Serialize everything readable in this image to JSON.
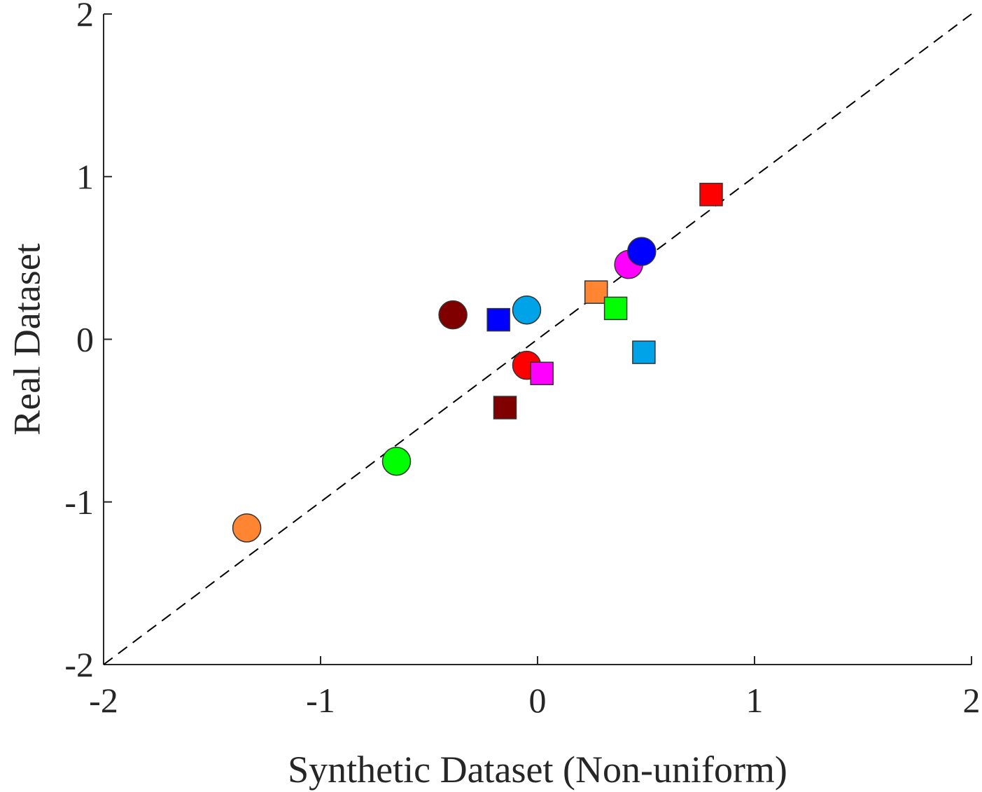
{
  "chart_data": {
    "type": "scatter",
    "xlabel": "Synthetic Dataset (Non-uniform)",
    "ylabel": "Real Dataset",
    "xlim": [
      -2,
      2
    ],
    "ylim": [
      -2,
      2
    ],
    "xticks": [
      -2,
      -1,
      0,
      1,
      2
    ],
    "yticks": [
      -2,
      -1,
      0,
      1,
      2
    ],
    "xtick_labels": [
      "-2",
      "-1",
      "0",
      "1",
      "2"
    ],
    "ytick_labels": [
      "-2",
      "-1",
      "0",
      "1",
      "2"
    ],
    "grid": false,
    "reference_line": {
      "style": "dashed",
      "color": "#000000",
      "from": [
        -2,
        -2
      ],
      "to": [
        2,
        2
      ]
    },
    "points": [
      {
        "x": -1.34,
        "y": -1.16,
        "marker": "circle",
        "color": "#ff8533"
      },
      {
        "x": -0.65,
        "y": -0.75,
        "marker": "circle",
        "color": "#00ff00"
      },
      {
        "x": -0.39,
        "y": 0.15,
        "marker": "circle",
        "color": "#800000"
      },
      {
        "x": -0.05,
        "y": 0.18,
        "marker": "circle",
        "color": "#00a2e8"
      },
      {
        "x": -0.05,
        "y": -0.16,
        "marker": "circle",
        "color": "#ff0000"
      },
      {
        "x": 0.42,
        "y": 0.46,
        "marker": "circle",
        "color": "#ff00ff"
      },
      {
        "x": 0.48,
        "y": 0.54,
        "marker": "circle",
        "color": "#0000ff"
      },
      {
        "x": -0.18,
        "y": 0.12,
        "marker": "square",
        "color": "#0000ff"
      },
      {
        "x": -0.15,
        "y": -0.42,
        "marker": "square",
        "color": "#800000"
      },
      {
        "x": 0.02,
        "y": -0.21,
        "marker": "square",
        "color": "#ff00ff"
      },
      {
        "x": 0.27,
        "y": 0.29,
        "marker": "square",
        "color": "#ff8533"
      },
      {
        "x": 0.36,
        "y": 0.19,
        "marker": "square",
        "color": "#00ff00"
      },
      {
        "x": 0.49,
        "y": -0.08,
        "marker": "square",
        "color": "#00a2e8"
      },
      {
        "x": 0.8,
        "y": 0.89,
        "marker": "square",
        "color": "#ff0000"
      }
    ]
  }
}
